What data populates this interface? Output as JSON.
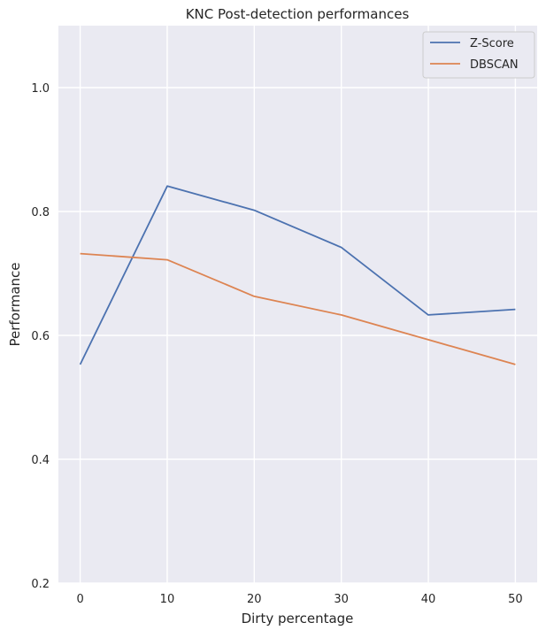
{
  "chart_data": {
    "type": "line",
    "title": "KNC Post-detection performances",
    "xlabel": "Dirty percentage",
    "ylabel": "Performance",
    "x": [
      0,
      10,
      20,
      30,
      40,
      50
    ],
    "xlim": [
      -2.5,
      52.5
    ],
    "ylim": [
      0.2,
      1.1
    ],
    "xticks": [
      "0",
      "10",
      "20",
      "30",
      "40",
      "50"
    ],
    "yticks": [
      "0.2",
      "0.4",
      "0.6",
      "0.8",
      "1.0"
    ],
    "ytick_values": [
      0.2,
      0.4,
      0.6,
      0.8,
      1.0
    ],
    "grid": true,
    "legend_placement": "top-right",
    "background": "#eaeaf2",
    "series": [
      {
        "name": "Z-Score",
        "color": "#4c72b0",
        "values": [
          0.553,
          0.841,
          0.802,
          0.742,
          0.633,
          0.642
        ]
      },
      {
        "name": "DBSCAN",
        "color": "#dd8452",
        "values": [
          0.732,
          0.722,
          0.663,
          0.633,
          0.593,
          0.553
        ]
      }
    ]
  }
}
